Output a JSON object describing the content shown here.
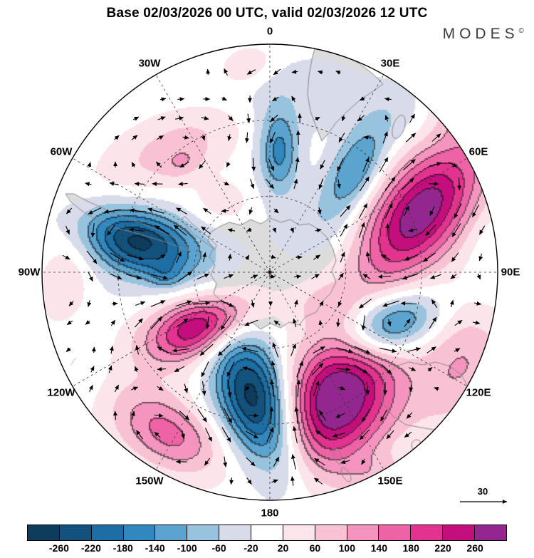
{
  "title": "Base 02/03/2026 00 UTC, valid 02/03/2026 12 UTC",
  "logo": {
    "text": "MODES",
    "sup": "©"
  },
  "map": {
    "meridian_labels": [
      {
        "label": "0",
        "angle": 0
      },
      {
        "label": "30E",
        "angle": 30
      },
      {
        "label": "60E",
        "angle": 60
      },
      {
        "label": "90E",
        "angle": 90
      },
      {
        "label": "120E",
        "angle": 120
      },
      {
        "label": "150E",
        "angle": 150
      },
      {
        "label": "180",
        "angle": 180
      },
      {
        "label": "150W",
        "angle": 210
      },
      {
        "label": "120W",
        "angle": 240
      },
      {
        "label": "90W",
        "angle": 270
      },
      {
        "label": "60W",
        "angle": 300
      },
      {
        "label": "30W",
        "angle": 330
      }
    ]
  },
  "reference_arrow": {
    "value": "30"
  },
  "colorbar": {
    "tick_labels": [
      "-260",
      "-220",
      "-180",
      "-140",
      "-100",
      "-60",
      "-20",
      "20",
      "60",
      "100",
      "140",
      "180",
      "220",
      "260"
    ],
    "cell_colors": [
      "#0d3c5d",
      "#12527c",
      "#1c6ea4",
      "#3188bf",
      "#5ca4d0",
      "#97c3df",
      "#d8dbe9",
      "#ffffff",
      "#fbe4ea",
      "#f9c2d4",
      "#f595bf",
      "#ee63a6",
      "#e3328f",
      "#c50e7e",
      "#93278f"
    ]
  },
  "chart_data": {
    "type": "heatmap",
    "subtype": "south-polar-filled-contour-anomaly-map-with-wind-vectors",
    "title": "Base 02/03/2026 00 UTC, valid 02/03/2026 12 UTC",
    "projection": "south-polar-stereographic",
    "meridian_labels": [
      "0",
      "30E",
      "60E",
      "90E",
      "120E",
      "150E",
      "180",
      "150W",
      "120W",
      "90W",
      "60W",
      "30W"
    ],
    "contour_level_boundaries": [
      -260,
      -220,
      -180,
      -140,
      -100,
      -60,
      -20,
      20,
      60,
      100,
      140,
      180,
      220,
      260
    ],
    "palette": [
      "#0d3c5d",
      "#12527c",
      "#1c6ea4",
      "#3188bf",
      "#5ca4d0",
      "#97c3df",
      "#d8dbe9",
      "#ffffff",
      "#fbe4ea",
      "#f9c2d4",
      "#f595bf",
      "#ee63a6",
      "#e3328f",
      "#c50e7e",
      "#93278f"
    ],
    "wind_vector_reference": 30,
    "legend_position": "bottom",
    "grid": "dashed meridians every 30 deg and two dashed latitude circles",
    "anomaly_centers": [
      {
        "lon": "4E",
        "lat": "42S",
        "approx_peak": -150
      },
      {
        "lon": "39E",
        "lat": "38S",
        "approx_peak": -150
      },
      {
        "lon": "77W",
        "lat": "36S",
        "approx_peak": -230
      },
      {
        "lon": "173W",
        "lat": "40S",
        "approx_peak": -270
      },
      {
        "lon": "114E",
        "lat": "39S",
        "approx_peak": -190
      },
      {
        "lon": "68E",
        "lat": "27S",
        "approx_peak": 230
      },
      {
        "lon": "127W",
        "lat": "56S",
        "approx_peak": 230
      },
      {
        "lon": "153E",
        "lat": "34S",
        "approx_peak": 270
      },
      {
        "lon": "147W",
        "lat": "16S",
        "approx_peak": 120
      }
    ]
  }
}
